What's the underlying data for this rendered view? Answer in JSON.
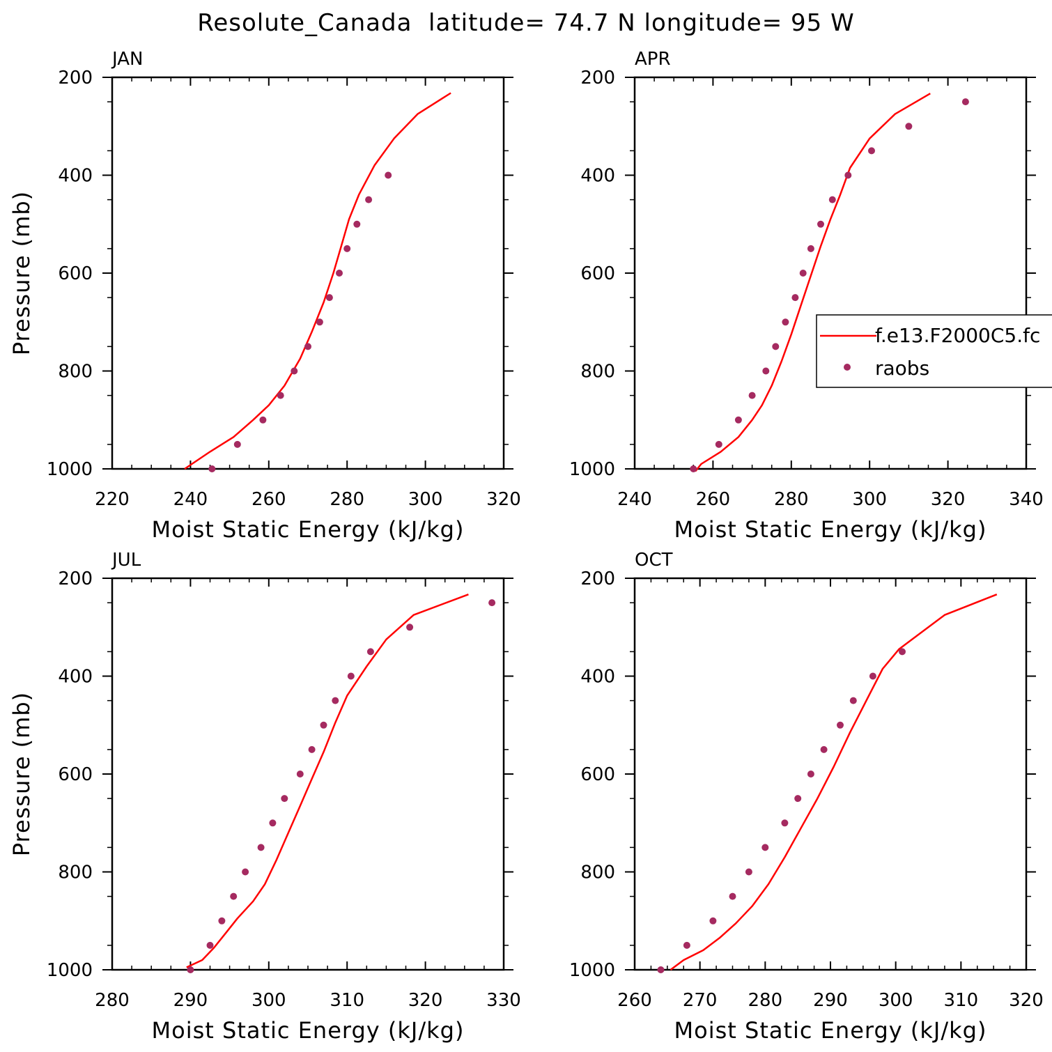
{
  "figure": {
    "title": "Resolute_Canada  latitude= 74.7 N longitude= 95 W",
    "line_color": "#ff0000",
    "dot_color": "#a52a60"
  },
  "legend": {
    "entries": [
      "f.e13.F2000C5.fc",
      "raobs"
    ]
  },
  "chart_data": [
    {
      "type": "line",
      "panel": "JAN",
      "xlabel": "Moist Static Energy (kJ/kg)",
      "ylabel": "Pressure (mb)",
      "xlim": [
        220,
        320
      ],
      "ylim": [
        1000,
        200
      ],
      "xticks": [
        220,
        240,
        260,
        280,
        300,
        320
      ],
      "yticks": [
        1000,
        800,
        600,
        400,
        200
      ],
      "series": [
        {
          "kind": "line",
          "x": [
            238.5,
            245,
            251,
            256,
            260,
            264,
            268,
            271,
            274,
            276.5,
            278.5,
            280.5,
            283,
            287,
            292,
            298,
            306.5
          ],
          "y": [
            1000,
            965,
            935,
            900,
            870,
            830,
            775,
            720,
            660,
            600,
            545,
            490,
            440,
            380,
            325,
            275,
            232
          ]
        },
        {
          "kind": "points",
          "x": [
            245.5,
            252,
            258.5,
            263,
            266.5,
            270,
            273,
            275.5,
            278,
            280,
            282.5,
            285.5,
            290.5
          ],
          "y": [
            1000,
            950,
            900,
            850,
            800,
            750,
            700,
            650,
            600,
            550,
            500,
            450,
            400
          ]
        }
      ]
    },
    {
      "type": "line",
      "panel": "APR",
      "xlabel": "Moist Static Energy (kJ/kg)",
      "ylabel": "",
      "xlim": [
        240,
        340
      ],
      "ylim": [
        1000,
        200
      ],
      "xticks": [
        240,
        260,
        280,
        300,
        320,
        340
      ],
      "yticks": [
        1000,
        800,
        600,
        400,
        200
      ],
      "series": [
        {
          "kind": "line",
          "x": [
            255.5,
            257,
            262,
            266.5,
            270,
            272.5,
            275,
            277.5,
            280,
            282.5,
            285,
            287.5,
            290,
            292.5,
            295,
            300,
            306.5,
            315.5
          ],
          "y": [
            1005,
            990,
            965,
            935,
            900,
            870,
            830,
            780,
            725,
            665,
            605,
            545,
            490,
            440,
            385,
            325,
            275,
            233
          ]
        },
        {
          "kind": "points",
          "x": [
            255,
            261.5,
            266.5,
            270,
            273.5,
            276,
            278.5,
            281,
            283,
            285,
            287.5,
            290.5,
            294.5,
            300.5,
            310,
            324.5
          ],
          "y": [
            1000,
            950,
            900,
            850,
            800,
            750,
            700,
            650,
            600,
            550,
            500,
            450,
            400,
            350,
            300,
            250
          ]
        }
      ]
    },
    {
      "type": "line",
      "panel": "JUL",
      "xlabel": "Moist Static Energy (kJ/kg)",
      "ylabel": "Pressure (mb)",
      "xlim": [
        280,
        330
      ],
      "ylim": [
        1000,
        200
      ],
      "xticks": [
        280,
        290,
        300,
        310,
        320,
        330
      ],
      "yticks": [
        1000,
        800,
        600,
        400,
        200
      ],
      "series": [
        {
          "kind": "line",
          "x": [
            289.5,
            291.5,
            293,
            294.5,
            296,
            298,
            299.5,
            301,
            302.5,
            304,
            305.5,
            307,
            308.5,
            310,
            312.5,
            315,
            318.5,
            325.5
          ],
          "y": [
            995,
            980,
            955,
            925,
            895,
            860,
            825,
            775,
            720,
            665,
            610,
            555,
            495,
            440,
            380,
            325,
            275,
            233
          ]
        },
        {
          "kind": "points",
          "x": [
            290,
            292.5,
            294,
            295.5,
            297,
            299,
            300.5,
            302,
            304,
            305.5,
            307,
            308.5,
            310.5,
            313,
            318,
            328.5
          ],
          "y": [
            1000,
            950,
            900,
            850,
            800,
            750,
            700,
            650,
            600,
            550,
            500,
            450,
            400,
            350,
            300,
            250
          ]
        }
      ]
    },
    {
      "type": "line",
      "panel": "OCT",
      "xlabel": "Moist Static Energy (kJ/kg)",
      "ylabel": "",
      "xlim": [
        260,
        320
      ],
      "ylim": [
        1000,
        200
      ],
      "xticks": [
        260,
        270,
        280,
        290,
        300,
        310,
        320
      ],
      "yticks": [
        1000,
        800,
        600,
        400,
        200
      ],
      "series": [
        {
          "kind": "line",
          "x": [
            265.5,
            267.5,
            270.5,
            273,
            275.5,
            278,
            280.5,
            283,
            285.5,
            288,
            290.5,
            293,
            295.5,
            298,
            300.5,
            302.5,
            307.5,
            315.5
          ],
          "y": [
            1000,
            980,
            960,
            935,
            905,
            870,
            825,
            770,
            710,
            650,
            585,
            515,
            450,
            385,
            345,
            325,
            275,
            233
          ]
        },
        {
          "kind": "points",
          "x": [
            264,
            268,
            272,
            275,
            277.5,
            280,
            283,
            285,
            287,
            289,
            291.5,
            293.5,
            296.5,
            301
          ],
          "y": [
            1000,
            950,
            900,
            850,
            800,
            750,
            700,
            650,
            600,
            550,
            500,
            450,
            400,
            350
          ]
        }
      ]
    }
  ]
}
